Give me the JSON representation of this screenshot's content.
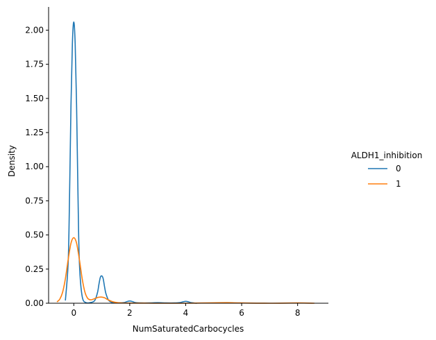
{
  "chart_data": {
    "type": "line",
    "xlabel": "NumSaturatedCarbocycles",
    "ylabel": "Density",
    "xlim": [
      -0.9,
      9.1
    ],
    "ylim": [
      0,
      2.17
    ],
    "xticks": [
      0,
      2,
      4,
      6,
      8
    ],
    "yticks": [
      0.0,
      0.25,
      0.5,
      0.75,
      1.0,
      1.25,
      1.5,
      1.75,
      2.0
    ],
    "ytick_labels": [
      "0.00",
      "0.25",
      "0.50",
      "0.75",
      "1.00",
      "1.25",
      "1.50",
      "1.75",
      "2.00"
    ],
    "grid": false,
    "legend": {
      "title": "ALDH1_inhibition",
      "placement": "center-right outside"
    },
    "series": [
      {
        "name": "0",
        "color": "#1f77b4",
        "x": [
          -0.3,
          -0.2,
          -0.15,
          -0.1,
          -0.05,
          0.0,
          0.05,
          0.1,
          0.15,
          0.2,
          0.3,
          0.45,
          0.6,
          0.75,
          0.85,
          0.9,
          0.95,
          1.0,
          1.05,
          1.1,
          1.15,
          1.25,
          1.4,
          1.6,
          1.8,
          1.9,
          2.0,
          2.1,
          2.2,
          2.4,
          2.7,
          3.0,
          3.3,
          3.6,
          3.8,
          3.9,
          4.0,
          4.1,
          4.2,
          4.4
        ],
        "y": [
          0.02,
          0.3,
          0.8,
          1.45,
          1.9,
          2.06,
          1.9,
          1.45,
          0.8,
          0.3,
          0.05,
          0.003,
          0.005,
          0.02,
          0.08,
          0.14,
          0.19,
          0.2,
          0.18,
          0.12,
          0.07,
          0.02,
          0.004,
          0.002,
          0.005,
          0.012,
          0.016,
          0.012,
          0.005,
          0.002,
          0.002,
          0.004,
          0.002,
          0.002,
          0.005,
          0.01,
          0.014,
          0.01,
          0.004,
          0.0
        ]
      },
      {
        "name": "1",
        "color": "#ff7f0e",
        "x": [
          -0.6,
          -0.5,
          -0.4,
          -0.3,
          -0.2,
          -0.1,
          0.0,
          0.1,
          0.2,
          0.3,
          0.4,
          0.5,
          0.6,
          0.7,
          0.8,
          0.9,
          1.0,
          1.1,
          1.2,
          1.35,
          1.5,
          1.7,
          2.0,
          2.5,
          3.0,
          4.0,
          5.0,
          5.5,
          6.0,
          7.0,
          8.0,
          8.6
        ],
        "y": [
          0.01,
          0.03,
          0.08,
          0.18,
          0.32,
          0.44,
          0.48,
          0.44,
          0.32,
          0.18,
          0.08,
          0.035,
          0.025,
          0.03,
          0.038,
          0.044,
          0.045,
          0.04,
          0.028,
          0.014,
          0.006,
          0.002,
          0.001,
          0.001,
          0.0,
          0.0,
          0.003,
          0.004,
          0.002,
          0.0,
          0.002,
          0.0
        ]
      }
    ]
  }
}
